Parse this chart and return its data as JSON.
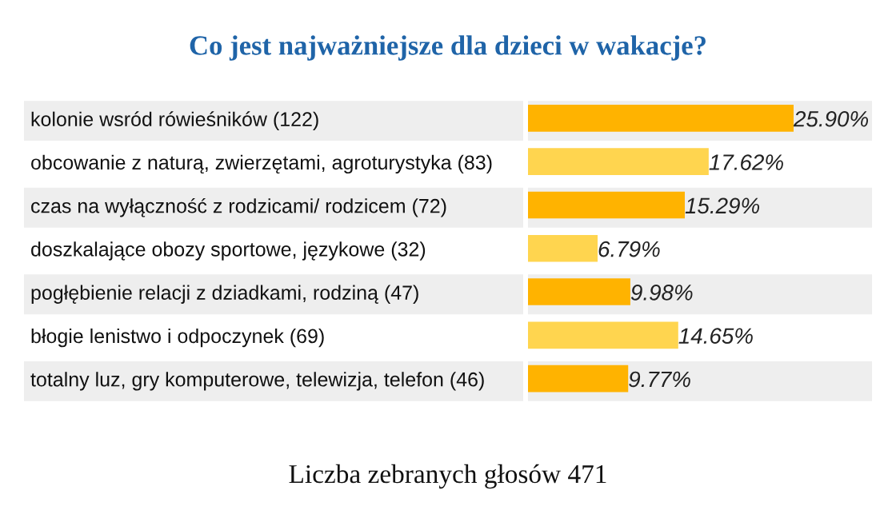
{
  "chart_data": {
    "type": "bar",
    "orientation": "horizontal",
    "title": "Co jest najważniejsze dla dzieci w wakacje?",
    "categories": [
      "kolonie wsród rówieśników (122)",
      "obcowanie z naturą, zwierzętami, agroturystyka (83)",
      "czas na wyłączność z rodzicami/ rodzicem (72)",
      "doszkalające obozy sportowe, językowe (32)",
      "pogłębienie relacji z dziadkami, rodziną (47)",
      "błogie lenistwo i odpoczynek (69)",
      "totalny luz, gry komputerowe, telewizja, telefon (46)"
    ],
    "values": [
      25.9,
      17.62,
      15.29,
      6.79,
      9.98,
      14.65,
      9.77
    ],
    "colors": [
      "#ffb300",
      "#ffd54f",
      "#ffb300",
      "#ffd54f",
      "#ffb300",
      "#ffd54f",
      "#ffb300"
    ],
    "value_labels": [
      "25.90%",
      "17.62%",
      "15.29%",
      "6.79%",
      "9.98%",
      "14.65%",
      "9.77%"
    ],
    "annotations": [
      "Liczba zebranych głosów 471"
    ]
  }
}
